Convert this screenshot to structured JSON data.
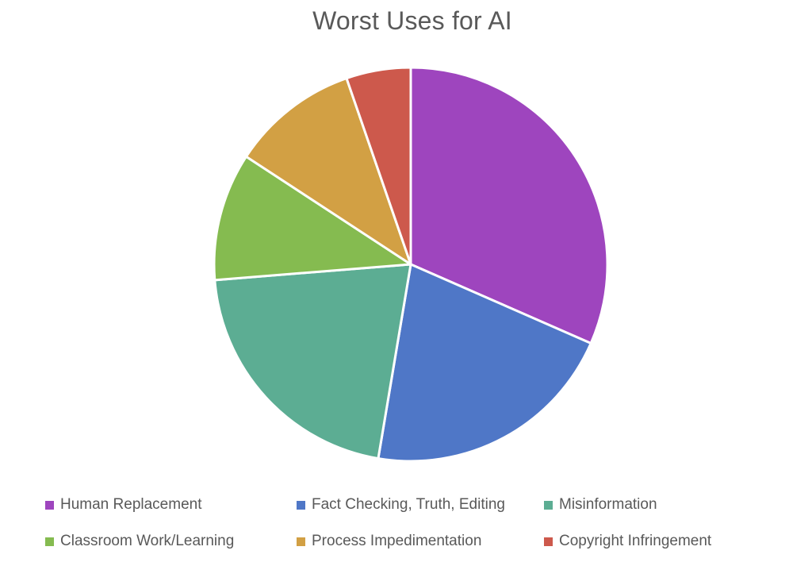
{
  "page": {
    "background": "#ffffff",
    "text_color": "#595959"
  },
  "chart_data": {
    "type": "pie",
    "title": "Worst Uses for AI",
    "categories": [
      "Human Replacement",
      "Fact Checking, Truth, Editing",
      "Misinformation",
      "Classroom Work/Learning",
      "Process Impedimentation",
      "Copyright Infringement"
    ],
    "values_pct": [
      31.6,
      21.1,
      21.1,
      10.5,
      10.5,
      5.3
    ],
    "colors": [
      "#9E45BE",
      "#4F77C7",
      "#5CAD93",
      "#85BB50",
      "#D2A044",
      "#CD594C"
    ],
    "start_angle_deg": 0,
    "direction": "clockwise",
    "slice_border_color": "#ffffff",
    "title_color": "#595959",
    "legend_position": "bottom",
    "legend_rows": 2,
    "legend_text_color": "#595959",
    "data_labels": "none"
  }
}
